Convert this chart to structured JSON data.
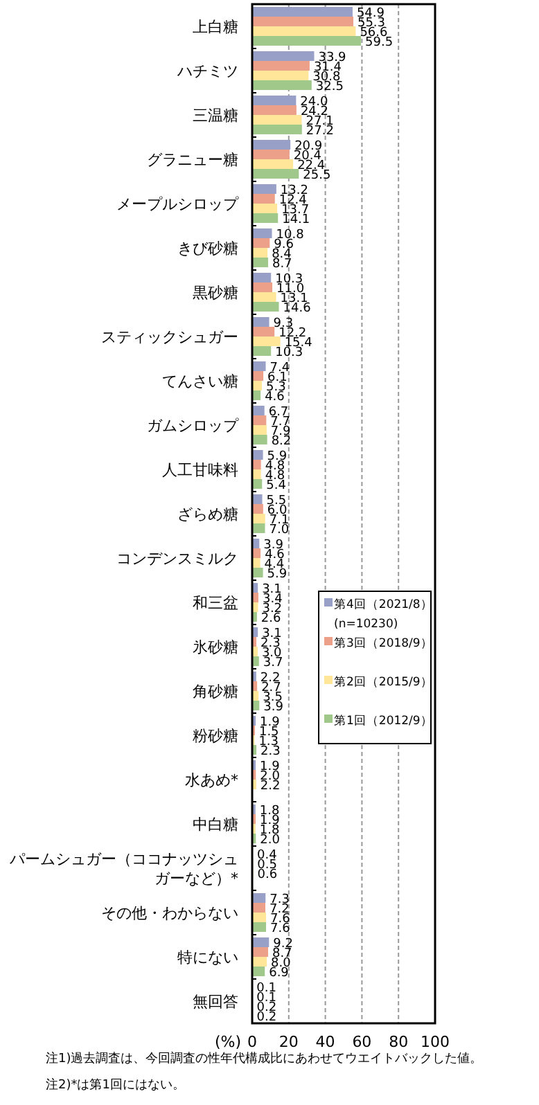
{
  "chart_data": {
    "type": "bar",
    "orientation": "horizontal",
    "xlabel": "(%)",
    "categories": [
      "上白糖",
      "ハチミツ",
      "三温糖",
      "グラニュー糖",
      "メープルシロップ",
      "きび砂糖",
      "黒砂糖",
      "スティックシュガー",
      "てんさい糖",
      "ガムシロップ",
      "人工甘味料",
      "ざらめ糖",
      "コンデンスミルク",
      "和三盆",
      "氷砂糖",
      "角砂糖",
      "粉砂糖",
      "水あめ*",
      "中白糖",
      "パームシュガー（ココナッツシュガーなど）*",
      "その他・わからない",
      "特にない",
      "無回答"
    ],
    "series": [
      {
        "name": "第4回（2021/8）",
        "color": "#99a0c8",
        "values": [
          54.9,
          33.9,
          24.0,
          20.9,
          13.2,
          10.8,
          10.3,
          9.3,
          7.4,
          6.7,
          5.9,
          5.5,
          3.9,
          3.1,
          3.1,
          2.2,
          1.9,
          1.9,
          1.8,
          0.4,
          7.3,
          9.2,
          0.1
        ],
        "value_labels": [
          "54.9",
          "33.9",
          "24.0",
          "20.9",
          "13.2",
          "10.8",
          "10.3",
          "9.3",
          "7.4",
          "6.7",
          "5.9",
          "5.5",
          "3.9",
          "3.1",
          "3.1",
          "2.2",
          "1.9",
          "1.9",
          "1.8",
          "0.4",
          "7.3",
          "9.2",
          "0.1"
        ]
      },
      {
        "name": "第3回（2018/9）",
        "color": "#eca08a",
        "values": [
          55.3,
          31.4,
          24.2,
          20.4,
          12.4,
          9.6,
          11.0,
          12.2,
          6.1,
          7.7,
          4.8,
          6.0,
          4.6,
          3.4,
          2.3,
          2.7,
          1.5,
          2.0,
          1.9,
          0.5,
          7.2,
          8.7,
          0.1
        ],
        "value_labels": [
          "55.3",
          "31.4",
          "24.2",
          "20.4",
          "12.4",
          "9.6",
          "11.0",
          "12.2",
          "6.1",
          "7.7",
          "4.8",
          "6.0",
          "4.6",
          "3.4",
          "2.3",
          "2.7",
          "1.5",
          "2.0",
          "1.9",
          "0.5",
          "7.2",
          "8.7",
          "0.1"
        ]
      },
      {
        "name": "第2回（2015/9）",
        "color": "#ffe699",
        "values": [
          56.6,
          30.8,
          27.1,
          22.4,
          13.7,
          8.4,
          13.1,
          15.4,
          5.3,
          7.9,
          4.8,
          7.1,
          4.4,
          3.2,
          3.0,
          3.5,
          1.3,
          2.2,
          1.8,
          0.6,
          7.6,
          8.0,
          0.2
        ],
        "value_labels": [
          "56.6",
          "30.8",
          "27.1",
          "22.4",
          "13.7",
          "8.4",
          "13.1",
          "15.4",
          "5.3",
          "7.9",
          "4.8",
          "7.1",
          "4.4",
          "3.2",
          "3.0",
          "3.5",
          "1.3",
          "2.2",
          "1.8",
          "0.6",
          "7.6",
          "8.0",
          "0.2"
        ]
      },
      {
        "name": "第1回（2012/9）",
        "color": "#a0c88a",
        "values": [
          59.5,
          32.5,
          27.2,
          25.5,
          14.1,
          8.7,
          14.6,
          10.3,
          4.6,
          8.2,
          5.4,
          7.0,
          5.9,
          2.6,
          3.7,
          3.9,
          2.3,
          null,
          2.0,
          null,
          7.6,
          6.9,
          0.2
        ],
        "value_labels": [
          "59.5",
          "32.5",
          "27.2",
          "25.5",
          "14.1",
          "8.7",
          "14.6",
          "10.3",
          "4.6",
          "8.2",
          "5.4",
          "7.0",
          "5.9",
          "2.6",
          "3.7",
          "3.9",
          "2.3",
          null,
          "2.0",
          null,
          "7.6",
          "6.9",
          "0.2"
        ]
      }
    ],
    "xlim": [
      0,
      100
    ],
    "xticks": [
      {
        "value": 0,
        "label": "0"
      },
      20,
      40,
      60,
      80,
      100
    ],
    "grid": "x",
    "legend": "right",
    "annotations": [
      "(n=10230)",
      "注1)過去調査は、今回調査の性年代構成比にあわせてウエイトバックした値。",
      "注2)*は第1回にはない。"
    ]
  }
}
